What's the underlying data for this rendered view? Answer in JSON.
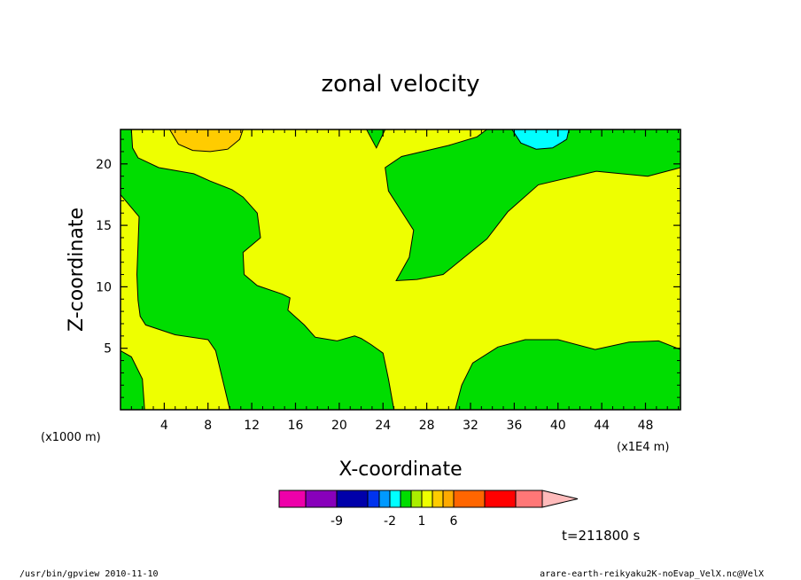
{
  "title": "zonal velocity",
  "footer": {
    "left": "/usr/bin/gpview   2010-11-10",
    "right": "arare-earth-reikyaku2K-noEvap_VelX.nc@VelX"
  },
  "colors": {
    "negative_1": "#00ffff",
    "near_zero": "#00dd00",
    "positive_1": "#eeff00",
    "positive_2": "#ffcc00"
  },
  "chart_data": {
    "type": "heatmap",
    "title": "zonal velocity",
    "xlabel": "X-coordinate",
    "ylabel": "Z-coordinate",
    "x_unit_left": "(x1000 m)",
    "x_unit_right": "(x1E4 m)",
    "xlim": [
      0,
      51.2
    ],
    "ylim": [
      0,
      22.8
    ],
    "xticks": [
      4,
      8,
      12,
      16,
      20,
      24,
      28,
      32,
      36,
      40,
      44,
      48
    ],
    "yticks": [
      5,
      10,
      15,
      20
    ],
    "time_label": "t=211800 s",
    "background_color": "#eeff00",
    "regions": [
      {
        "name": "green_left",
        "color": "#00dd00",
        "points": [
          [
            0,
            22.8
          ],
          [
            1,
            22.8
          ],
          [
            1.1,
            21.3
          ],
          [
            1.6,
            20.5
          ],
          [
            3.5,
            19.7
          ],
          [
            6.7,
            19.2
          ],
          [
            8.2,
            18.6
          ],
          [
            10.2,
            17.9
          ],
          [
            11.2,
            17.3
          ],
          [
            12.5,
            16.0
          ],
          [
            12.8,
            14.0
          ],
          [
            11.2,
            12.8
          ],
          [
            11.3,
            11.0
          ],
          [
            12.5,
            10.1
          ],
          [
            14.8,
            9.4
          ],
          [
            15.5,
            9.1
          ],
          [
            15.3,
            8.1
          ],
          [
            16.8,
            6.9
          ],
          [
            17.8,
            5.9
          ],
          [
            19.8,
            5.6
          ],
          [
            21.4,
            6.0
          ],
          [
            22.0,
            5.8
          ],
          [
            22.9,
            5.3
          ],
          [
            24.0,
            4.6
          ],
          [
            24.5,
            2.5
          ],
          [
            25.0,
            0
          ],
          [
            10.0,
            0
          ],
          [
            8.7,
            4.8
          ],
          [
            8.0,
            5.7
          ],
          [
            5.0,
            6.1
          ],
          [
            2.3,
            6.9
          ],
          [
            1.8,
            7.6
          ],
          [
            1.6,
            8.9
          ],
          [
            1.5,
            11.0
          ],
          [
            1.6,
            13.4
          ],
          [
            1.7,
            15.7
          ],
          [
            0,
            17.5
          ]
        ]
      },
      {
        "name": "green_right",
        "color": "#00dd00",
        "points": [
          [
            51.2,
            22.8
          ],
          [
            51.2,
            19.7
          ],
          [
            48.2,
            19.0
          ],
          [
            43.5,
            19.4
          ],
          [
            38.2,
            18.3
          ],
          [
            35.4,
            16.1
          ],
          [
            33.5,
            13.9
          ],
          [
            29.5,
            11.0
          ],
          [
            27.1,
            10.6
          ],
          [
            25.2,
            10.5
          ],
          [
            26.4,
            12.4
          ],
          [
            26.8,
            14.6
          ],
          [
            24.5,
            17.8
          ],
          [
            24.2,
            19.7
          ],
          [
            25.7,
            20.6
          ],
          [
            30.0,
            21.5
          ],
          [
            32.6,
            22.2
          ],
          [
            33.5,
            22.8
          ]
        ]
      },
      {
        "name": "green_top_center",
        "color": "#00dd00",
        "points": [
          [
            22.5,
            22.8
          ],
          [
            23.4,
            21.3
          ],
          [
            24.2,
            22.8
          ]
        ]
      },
      {
        "name": "green_bottom_left",
        "color": "#00dd00",
        "points": [
          [
            0,
            0
          ],
          [
            0,
            4.8
          ],
          [
            1.0,
            4.3
          ],
          [
            2.0,
            2.5
          ],
          [
            2.2,
            0
          ]
        ]
      },
      {
        "name": "green_bottom_right",
        "color": "#00dd00",
        "points": [
          [
            30.6,
            0
          ],
          [
            31.2,
            2.0
          ],
          [
            32.2,
            3.8
          ],
          [
            34.5,
            5.1
          ],
          [
            37.0,
            5.7
          ],
          [
            40.0,
            5.7
          ],
          [
            43.4,
            4.9
          ],
          [
            46.5,
            5.5
          ],
          [
            49.2,
            5.6
          ],
          [
            51.2,
            4.9
          ],
          [
            51.2,
            0
          ]
        ]
      },
      {
        "name": "orange_top",
        "color": "#ffcc00",
        "points": [
          [
            4.5,
            22.8
          ],
          [
            5.3,
            21.6
          ],
          [
            6.6,
            21.1
          ],
          [
            8.2,
            21.0
          ],
          [
            9.8,
            21.2
          ],
          [
            10.9,
            22.0
          ],
          [
            11.2,
            22.8
          ]
        ]
      },
      {
        "name": "cyan_top",
        "color": "#00ffff",
        "points": [
          [
            35.8,
            22.8
          ],
          [
            36.6,
            21.7
          ],
          [
            38.0,
            21.2
          ],
          [
            39.5,
            21.3
          ],
          [
            40.8,
            22.0
          ],
          [
            41.0,
            22.8
          ]
        ]
      }
    ],
    "colorbar": {
      "colors": [
        "#ee00aa",
        "#8800bb",
        "#0000aa",
        "#0033ee",
        "#0099ff",
        "#00ffff",
        "#00dd00",
        "#aaee00",
        "#eeff00",
        "#ffcc00",
        "#ffaa00",
        "#ff6600",
        "#ff0000",
        "#ff7777",
        "#ffbbbb"
      ],
      "labels": [
        {
          "text": "-9",
          "bin": 1
        },
        {
          "text": "-2",
          "bin": 4
        },
        {
          "text": "1",
          "bin": 7
        },
        {
          "text": "6",
          "bin": 10
        }
      ]
    }
  }
}
